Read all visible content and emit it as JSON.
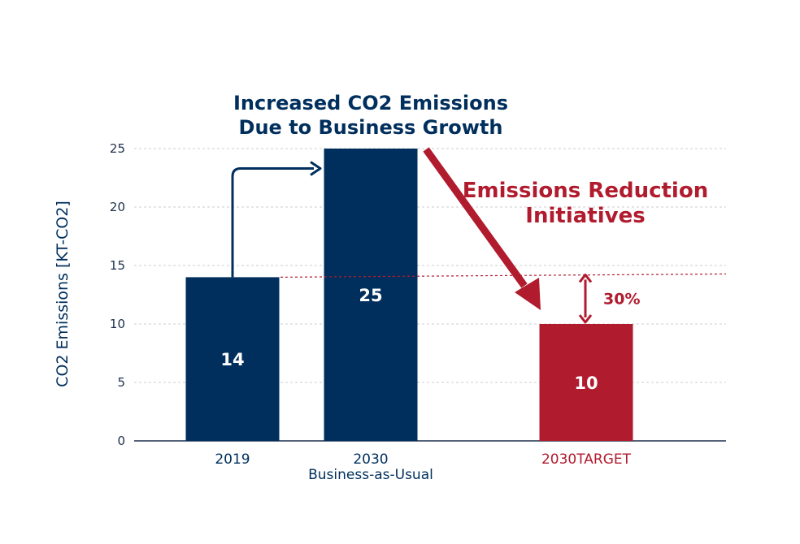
{
  "chart_data": {
    "type": "bar",
    "categories": [
      "2019",
      "2030",
      "2030TARGET"
    ],
    "values": [
      14,
      25,
      10
    ],
    "bar_colors": [
      "#002f5d",
      "#002f5d",
      "#b11b2e"
    ],
    "ylabel": "CO2 Emissions [KT-CO2]",
    "ylim": [
      0,
      25
    ],
    "yticks": [
      0,
      5,
      10,
      15,
      20,
      25
    ],
    "grid": true,
    "group_label": "Business-as-Usual",
    "annotations": {
      "growth": "Increased CO2 Emissions\nDue to Business Growth",
      "reduction": "Emissions Reduction\nInitiatives",
      "reduction_percent": "30%"
    }
  },
  "colors": {
    "navy": "#002f5d",
    "red": "#b11b2e",
    "grid": "#cccccc",
    "axis": "#1d2f4c"
  }
}
